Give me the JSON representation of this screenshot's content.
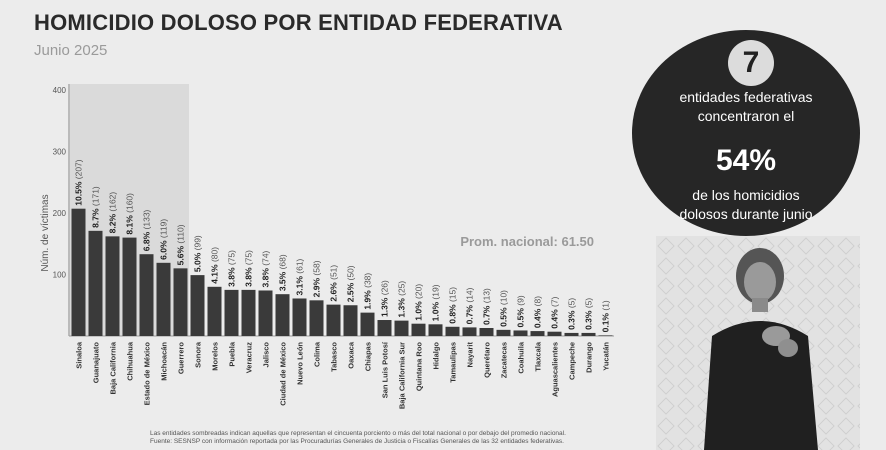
{
  "header": {
    "title": "HOMICIDIO DOLOSO POR ENTIDAD FEDERATIVA",
    "subtitle": "Junio 2025"
  },
  "callout": {
    "number": "7",
    "line1": "entidades federativas",
    "line2": "concentraron el",
    "percent": "54%",
    "line3": "de los homicidios",
    "line4": "dolosos durante junio"
  },
  "footnote": {
    "line1": "Las entidades sombreadas indican aquellas que representan el cincuenta porciento o más del total nacional o por debajo del promedio nacional.",
    "line2": "Fuente: SESNSP con información reportada por las Procuradurías Generales de Justicia o Fiscalías Generales de las 32 entidades federativas."
  },
  "colors": {
    "bar": "#3a3a3a",
    "highlight_bg": "#dadada",
    "circle": "#262626"
  },
  "chart_data": {
    "type": "bar",
    "title": "HOMICIDIO DOLOSO POR ENTIDAD FEDERATIVA",
    "subtitle": "Junio 2025",
    "ylabel": "Núm. de víctimas",
    "xlabel": "",
    "ylim": [
      0,
      400
    ],
    "yticks": [
      "100",
      "200",
      "300",
      "400"
    ],
    "yticks_values": [
      100,
      200,
      300,
      400
    ],
    "grid": false,
    "highlighted_count": 7,
    "average_label": "Prom. nacional: 61.50",
    "categories": [
      "Sinaloa",
      "Guanajuato",
      "Baja California",
      "Chihuahua",
      "Estado de México",
      "Michoacán",
      "Guerrero",
      "Sonora",
      "Morelos",
      "Puebla",
      "Veracruz",
      "Jalisco",
      "Ciudad de México",
      "Nuevo León",
      "Colima",
      "Tabasco",
      "Oaxaca",
      "Chiapas",
      "San Luis Potosí",
      "Baja California Sur",
      "Quintana Roo",
      "Hidalgo",
      "Tamaulipas",
      "Nayarit",
      "Querétaro",
      "Zacatecas",
      "Coahuila",
      "Tlaxcala",
      "Aguascalientes",
      "Campeche",
      "Durango",
      "Yucatán"
    ],
    "values": [
      207,
      171,
      162,
      160,
      133,
      119,
      110,
      99,
      80,
      75,
      75,
      74,
      68,
      61,
      58,
      51,
      50,
      38,
      26,
      25,
      20,
      19,
      15,
      14,
      13,
      10,
      9,
      8,
      7,
      5,
      5,
      1
    ],
    "pct_labels": [
      "10.5%",
      "8.7%",
      "8.2%",
      "8.1%",
      "6.8%",
      "6.0%",
      "5.6%",
      "5.0%",
      "4.1%",
      "3.8%",
      "3.8%",
      "3.8%",
      "3.5%",
      "3.1%",
      "2.9%",
      "2.6%",
      "2.5%",
      "1.9%",
      "1.3%",
      "1.3%",
      "1.0%",
      "1.0%",
      "0.8%",
      "0.7%",
      "0.7%",
      "0.5%",
      "0.5%",
      "0.4%",
      "0.4%",
      "0.3%",
      "0.3%",
      "0.1%"
    ],
    "count_labels": [
      "(207)",
      "(171)",
      "(162)",
      "(160)",
      "(133)",
      "(119)",
      "(110)",
      "(99)",
      "(80)",
      "(75)",
      "(75)",
      "(74)",
      "(68)",
      "(61)",
      "(58)",
      "(51)",
      "(50)",
      "(38)",
      "(26)",
      "(25)",
      "(20)",
      "(19)",
      "(15)",
      "(14)",
      "(13)",
      "(10)",
      "(9)",
      "(8)",
      "(7)",
      "(5)",
      "(5)",
      "(1)"
    ]
  }
}
